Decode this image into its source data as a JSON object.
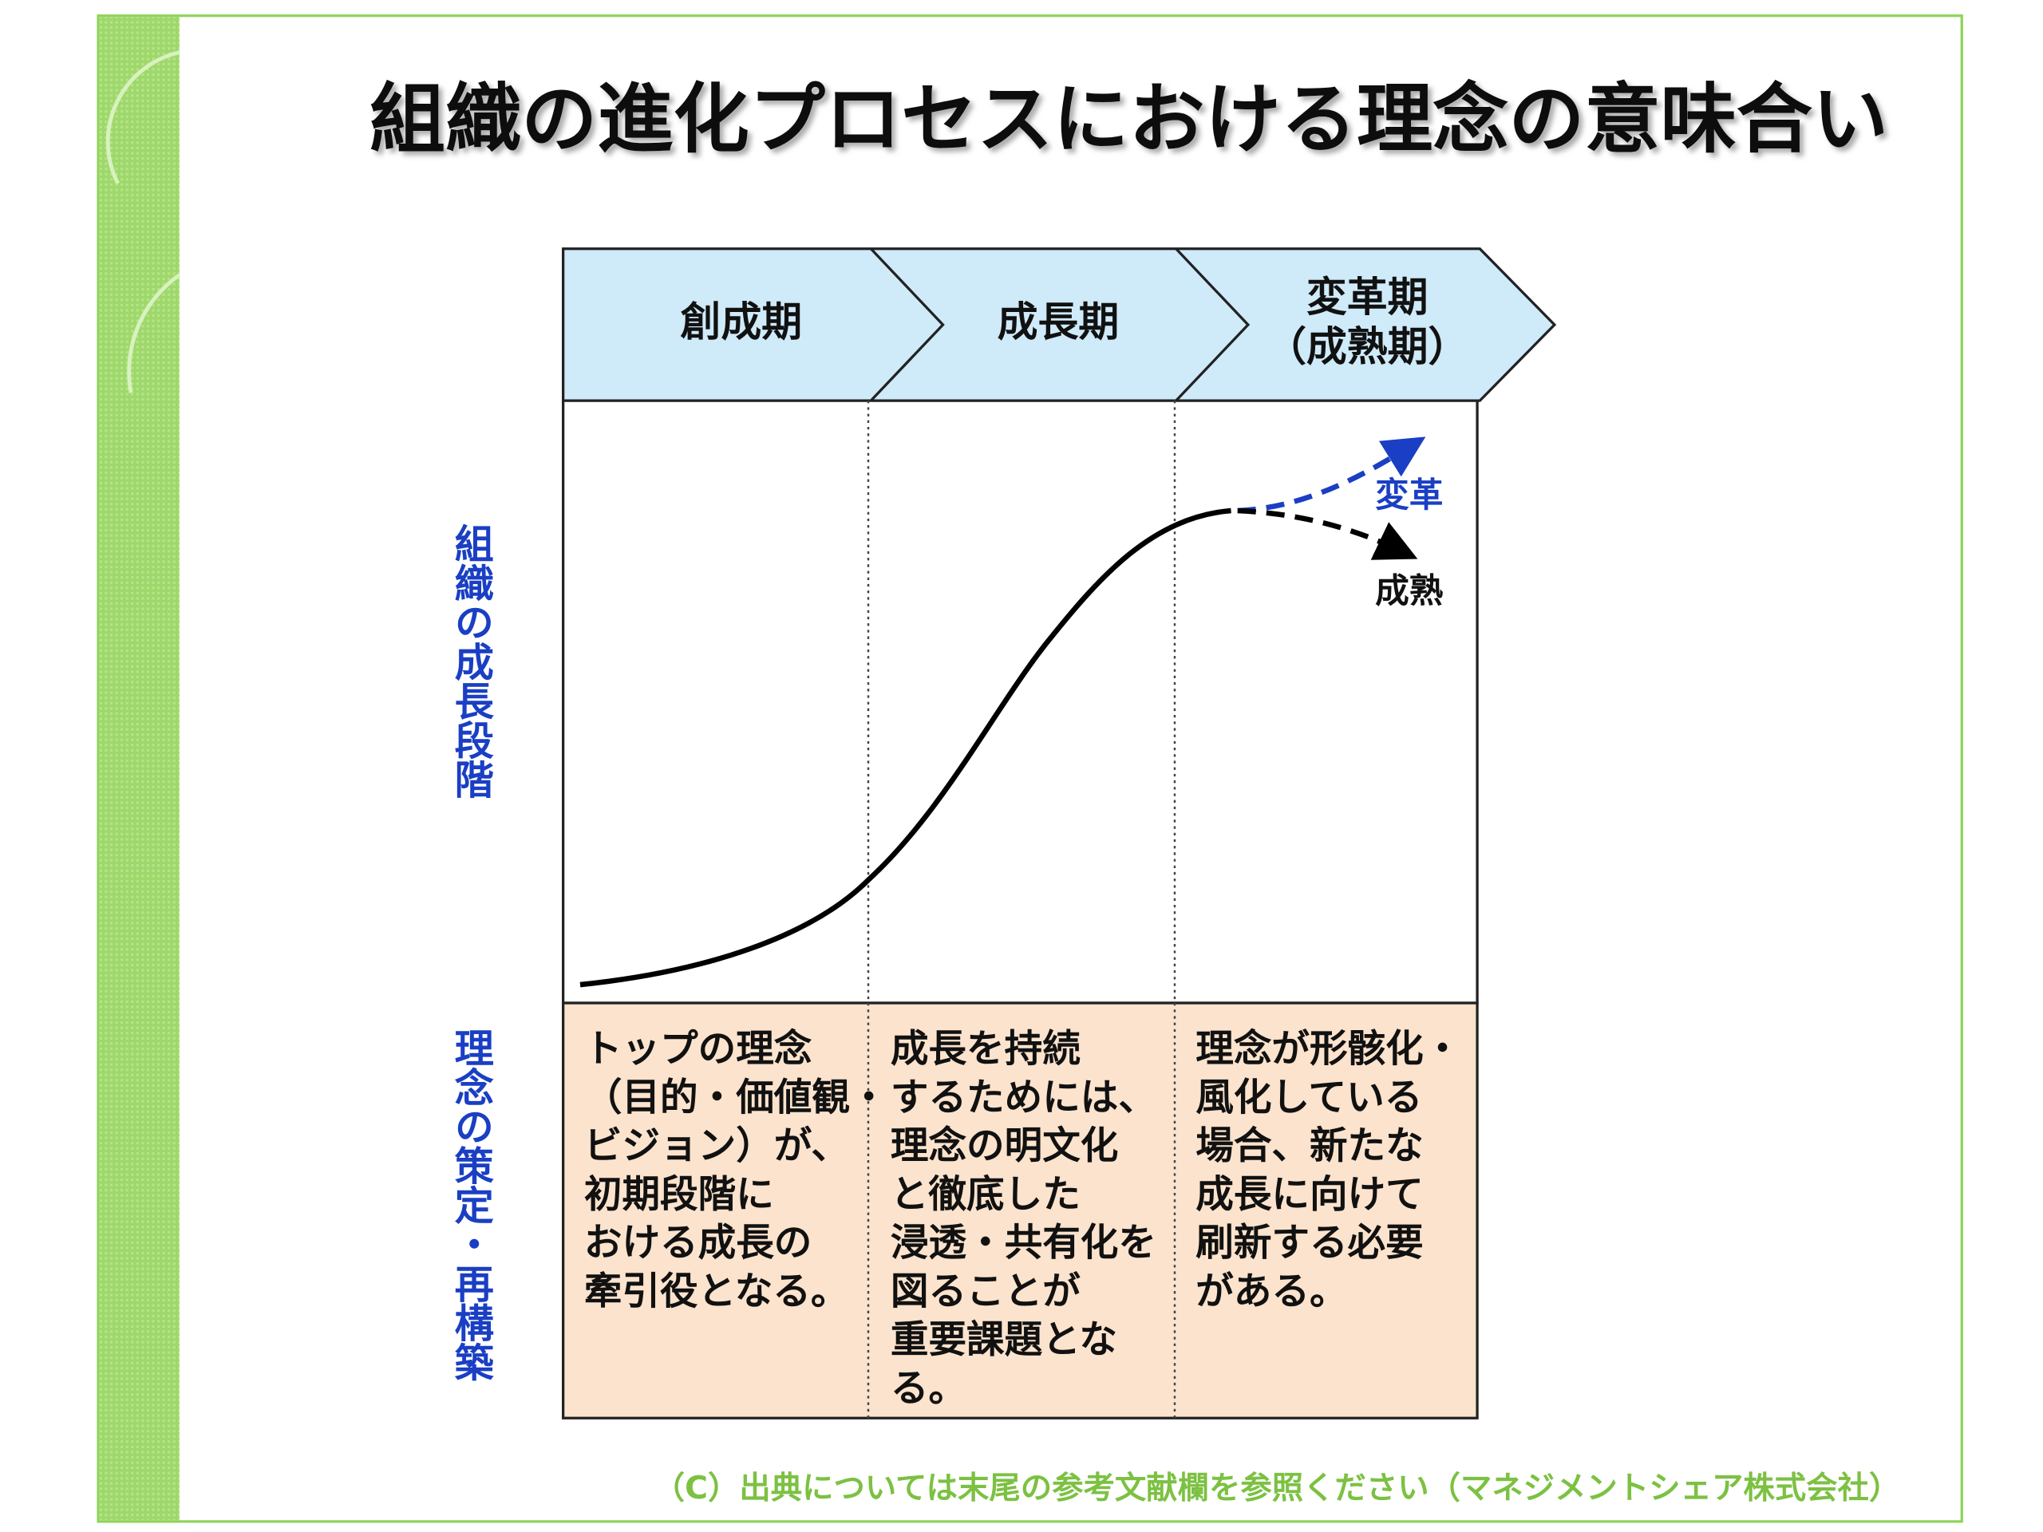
{
  "title": "組織の進化プロセスにおける理念の意味合い",
  "phases": [
    [
      "創成期"
    ],
    [
      "成長期"
    ],
    [
      "変革期",
      "（成熟期）"
    ]
  ],
  "y_axis_labels": [
    "組織の成長段階",
    "理念の策定・再構築"
  ],
  "curve_labels": {
    "transform": "変革",
    "mature": "成熟"
  },
  "descriptions": [
    [
      "トップの理念",
      "（目的・価値観・",
      "ビジョン）が、",
      "初期段階に",
      "おける成長の",
      "牽引役となる。"
    ],
    [
      "成長を持続",
      "するためには、",
      "理念の明文化",
      "と徹底した",
      "浸透・共有化を",
      "図ることが",
      "重要課題とな",
      "る。"
    ],
    [
      "理念が形骸化・",
      "風化している",
      "場合、新たな",
      "成長に向けて",
      "刷新する必要",
      "がある。"
    ]
  ],
  "footer": "（C）出典については末尾の参考文献欄を参照ください（マネジメントシェア株式会社）"
}
